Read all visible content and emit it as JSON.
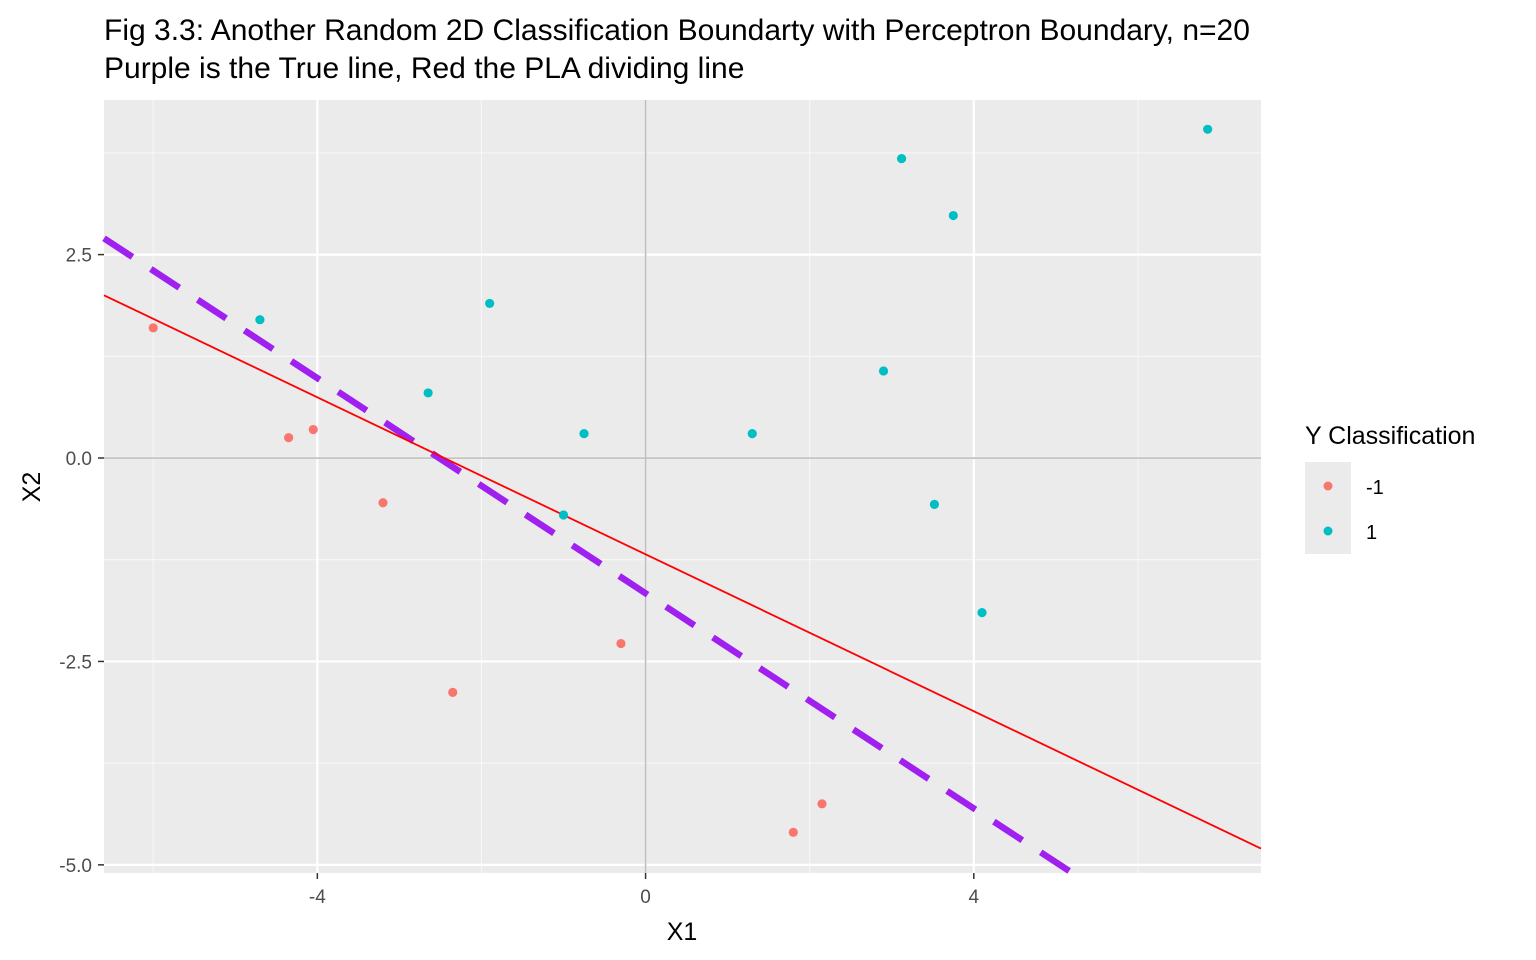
{
  "chart_data": {
    "type": "scatter",
    "title": "Fig 3.3: Another Random 2D Classification Boundarty with Perceptron Boundary, n=20",
    "subtitle": "Purple is the True line, Red the PLA dividing line",
    "xlabel": "X1",
    "ylabel": "X2",
    "xlim": [
      -6.6,
      7.5
    ],
    "ylim": [
      -5.1,
      4.4
    ],
    "x_ticks": [
      -4,
      0,
      4
    ],
    "x_tick_labels": [
      "-4",
      "0",
      "4"
    ],
    "y_ticks": [
      -5.0,
      -2.5,
      0.0,
      2.5
    ],
    "y_tick_labels": [
      "-5.0",
      "-2.5",
      "0.0",
      "2.5"
    ],
    "grid": true,
    "legend": {
      "title": "Y Classification",
      "position": "right",
      "entries": [
        {
          "label": "-1",
          "color": "#f8766d"
        },
        {
          "label": "1",
          "color": "#00bfc4"
        }
      ]
    },
    "series": [
      {
        "name": "-1",
        "color": "#f8766d",
        "points": [
          {
            "x": -6.0,
            "y": 1.6
          },
          {
            "x": -4.35,
            "y": 0.25
          },
          {
            "x": -4.05,
            "y": 0.35
          },
          {
            "x": -3.2,
            "y": -0.55
          },
          {
            "x": -2.35,
            "y": -2.88
          },
          {
            "x": -0.3,
            "y": -2.28
          },
          {
            "x": 1.8,
            "y": -4.6
          },
          {
            "x": 2.15,
            "y": -4.25
          }
        ]
      },
      {
        "name": "1",
        "color": "#00bfc4",
        "points": [
          {
            "x": -4.7,
            "y": 1.7
          },
          {
            "x": -2.65,
            "y": 0.8
          },
          {
            "x": -1.9,
            "y": 1.9
          },
          {
            "x": -1.0,
            "y": -0.7
          },
          {
            "x": -0.75,
            "y": 0.3
          },
          {
            "x": 1.3,
            "y": 0.3
          },
          {
            "x": 2.9,
            "y": 1.07
          },
          {
            "x": 3.12,
            "y": 3.68
          },
          {
            "x": 3.52,
            "y": -0.57
          },
          {
            "x": 3.75,
            "y": 2.98
          },
          {
            "x": 4.1,
            "y": -1.9
          },
          {
            "x": 6.85,
            "y": 4.04
          }
        ]
      }
    ],
    "lines": [
      {
        "name": "True line",
        "color": "#a020f0",
        "style": "dashed",
        "x": [
          -6.6,
          5.2
        ],
        "y": [
          2.7,
          -5.1
        ]
      },
      {
        "name": "PLA dividing line",
        "color": "#ff0000",
        "style": "solid",
        "x": [
          -6.6,
          7.5
        ],
        "y": [
          2.0,
          -4.8
        ]
      }
    ]
  }
}
